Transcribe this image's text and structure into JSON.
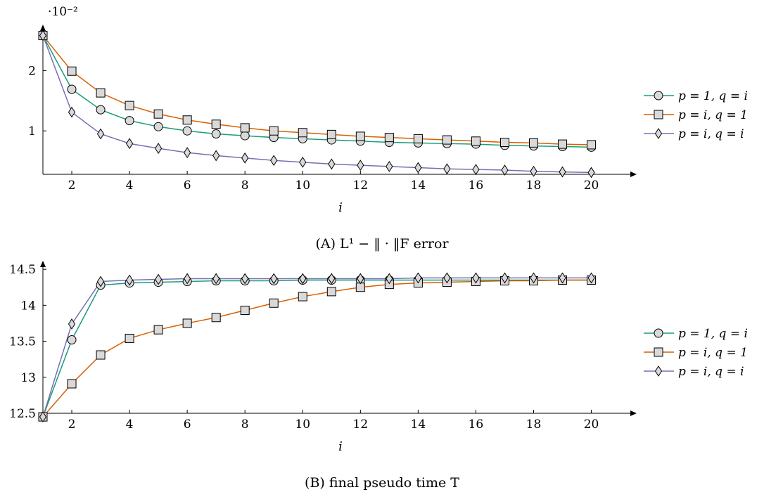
{
  "chart_data": [
    {
      "type": "line",
      "caption_tag": "(A)",
      "caption": "L¹ − ‖ · ‖F error",
      "xlabel": "i",
      "ylabel": "",
      "y_scale_label": "·10⁻²",
      "x": [
        1,
        2,
        3,
        4,
        5,
        6,
        7,
        8,
        9,
        10,
        11,
        12,
        13,
        14,
        15,
        16,
        17,
        18,
        19,
        20
      ],
      "xlim": [
        1,
        21.4
      ],
      "ylim": [
        0.28,
        2.68
      ],
      "xticks": [
        2,
        4,
        6,
        8,
        10,
        12,
        14,
        16,
        18,
        20
      ],
      "yticks": [
        1,
        2
      ],
      "legend_position": "right",
      "series": [
        {
          "name": "p = 1, q = i",
          "marker": "circle",
          "color": "#1a9d7a",
          "values": [
            2.58,
            1.69,
            1.35,
            1.17,
            1.07,
            1.0,
            0.95,
            0.92,
            0.89,
            0.87,
            0.85,
            0.83,
            0.81,
            0.8,
            0.79,
            0.78,
            0.76,
            0.75,
            0.74,
            0.73
          ]
        },
        {
          "name": "p = i, q = 1",
          "marker": "square",
          "color": "#d95f02",
          "values": [
            2.58,
            1.99,
            1.63,
            1.42,
            1.28,
            1.18,
            1.11,
            1.05,
            1.0,
            0.97,
            0.94,
            0.91,
            0.89,
            0.87,
            0.85,
            0.83,
            0.81,
            0.8,
            0.78,
            0.77
          ]
        },
        {
          "name": "p = i, q = i",
          "marker": "diamond",
          "color": "#7570b3",
          "values": [
            2.58,
            1.31,
            0.95,
            0.79,
            0.71,
            0.64,
            0.59,
            0.55,
            0.51,
            0.48,
            0.45,
            0.43,
            0.41,
            0.39,
            0.37,
            0.36,
            0.35,
            0.33,
            0.32,
            0.31
          ]
        }
      ]
    },
    {
      "type": "line",
      "caption_tag": "(B)",
      "caption": "final pseudo time T",
      "xlabel": "i",
      "ylabel": "",
      "x": [
        1,
        2,
        3,
        4,
        5,
        6,
        7,
        8,
        9,
        10,
        11,
        12,
        13,
        14,
        15,
        16,
        17,
        18,
        19,
        20
      ],
      "xlim": [
        1,
        21.4
      ],
      "ylim": [
        12.5,
        14.55
      ],
      "xticks": [
        2,
        4,
        6,
        8,
        10,
        12,
        14,
        16,
        18,
        20
      ],
      "yticks": [
        12.5,
        13,
        13.5,
        14,
        14.5
      ],
      "yticklabels": [
        "12.5",
        "13",
        "13.5",
        "14",
        "14.5"
      ],
      "legend_position": "right",
      "series": [
        {
          "name": "p = 1, q = i",
          "marker": "circle",
          "color": "#1a9d7a",
          "values": [
            12.45,
            13.52,
            14.28,
            14.31,
            14.32,
            14.33,
            14.34,
            14.34,
            14.34,
            14.35,
            14.35,
            14.35,
            14.35,
            14.35,
            14.35,
            14.35,
            14.35,
            14.35,
            14.35,
            14.35
          ]
        },
        {
          "name": "p = i, q = 1",
          "marker": "square",
          "color": "#d95f02",
          "values": [
            12.45,
            12.91,
            13.31,
            13.54,
            13.66,
            13.75,
            13.83,
            13.93,
            14.03,
            14.12,
            14.19,
            14.25,
            14.29,
            14.31,
            14.32,
            14.33,
            14.34,
            14.34,
            14.35,
            14.35
          ]
        },
        {
          "name": "p = i, q = i",
          "marker": "diamond",
          "color": "#7570b3",
          "values": [
            12.45,
            13.74,
            14.33,
            14.35,
            14.36,
            14.37,
            14.37,
            14.37,
            14.37,
            14.37,
            14.37,
            14.37,
            14.37,
            14.38,
            14.38,
            14.38,
            14.38,
            14.38,
            14.38,
            14.38
          ]
        }
      ]
    }
  ]
}
